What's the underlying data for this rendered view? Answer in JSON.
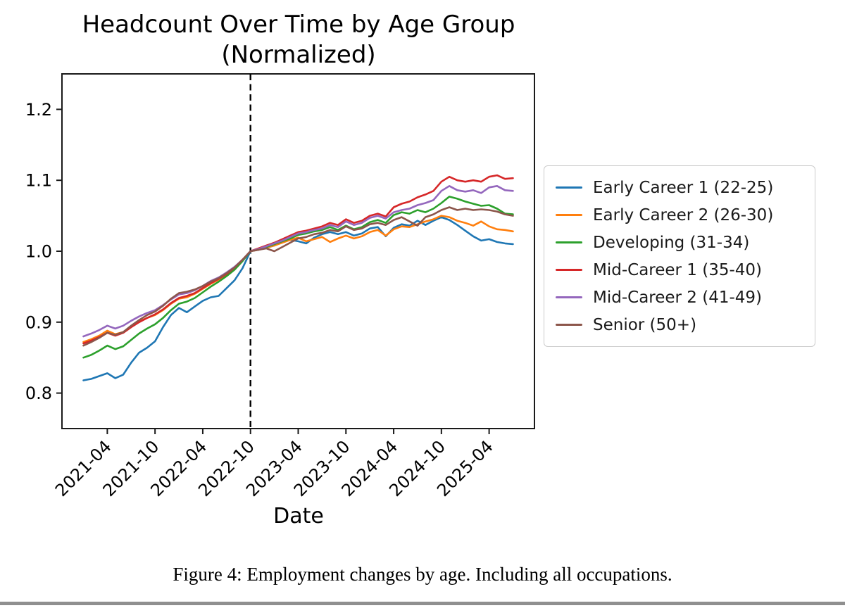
{
  "figure": {
    "title_line1": "Headcount Over Time by Age Group",
    "title_line2": "(Normalized)",
    "xlabel": "Date",
    "caption": "Figure 4: Employment changes by age. Including all occupations."
  },
  "chart_data": {
    "type": "line",
    "title": "Headcount Over Time by Age Group (Normalized)",
    "xlabel": "Date",
    "ylabel": "",
    "grid": false,
    "legend_position": "right-outside",
    "ylim": [
      0.75,
      1.25
    ],
    "yticks": [
      "1.2",
      "1.1",
      "1.0",
      "0.9",
      "0.8"
    ],
    "xticks": [
      "2021-04",
      "2021-10",
      "2022-04",
      "2022-10",
      "2023-04",
      "2023-10",
      "2024-04",
      "2024-10",
      "2025-04"
    ],
    "annotations": [
      {
        "type": "vline",
        "x": "2022-10",
        "style": "dashed",
        "color": "#000000",
        "note": "normalization point, all series = 1.0"
      }
    ],
    "x": [
      "2021-01",
      "2021-02",
      "2021-03",
      "2021-04",
      "2021-05",
      "2021-06",
      "2021-07",
      "2021-08",
      "2021-09",
      "2021-10",
      "2021-11",
      "2021-12",
      "2022-01",
      "2022-02",
      "2022-03",
      "2022-04",
      "2022-05",
      "2022-06",
      "2022-07",
      "2022-08",
      "2022-09",
      "2022-10",
      "2022-11",
      "2022-12",
      "2023-01",
      "2023-02",
      "2023-03",
      "2023-04",
      "2023-05",
      "2023-06",
      "2023-07",
      "2023-08",
      "2023-09",
      "2023-10",
      "2023-11",
      "2023-12",
      "2024-01",
      "2024-02",
      "2024-03",
      "2024-04",
      "2024-05",
      "2024-06",
      "2024-07",
      "2024-08",
      "2024-09",
      "2024-10",
      "2024-11",
      "2024-12",
      "2025-01",
      "2025-02",
      "2025-03",
      "2025-04",
      "2025-05",
      "2025-06",
      "2025-07"
    ],
    "series": [
      {
        "name": "Early Career 1 (22-25)",
        "color": "#1f77b4",
        "values": [
          0.818,
          0.82,
          0.824,
          0.828,
          0.821,
          0.826,
          0.843,
          0.857,
          0.864,
          0.873,
          0.893,
          0.91,
          0.92,
          0.914,
          0.922,
          0.93,
          0.935,
          0.937,
          0.948,
          0.959,
          0.976,
          1.0,
          1.002,
          1.005,
          1.008,
          1.013,
          1.016,
          1.014,
          1.011,
          1.019,
          1.024,
          1.027,
          1.024,
          1.027,
          1.022,
          1.025,
          1.032,
          1.034,
          1.021,
          1.033,
          1.038,
          1.036,
          1.043,
          1.037,
          1.043,
          1.048,
          1.044,
          1.037,
          1.029,
          1.021,
          1.015,
          1.017,
          1.013,
          1.011,
          1.01
        ]
      },
      {
        "name": "Early Career 2 (26-30)",
        "color": "#ff7f0e",
        "values": [
          0.872,
          0.876,
          0.881,
          0.888,
          0.883,
          0.886,
          0.894,
          0.901,
          0.906,
          0.91,
          0.917,
          0.926,
          0.933,
          0.935,
          0.94,
          0.947,
          0.954,
          0.96,
          0.967,
          0.976,
          0.987,
          1.0,
          1.002,
          1.005,
          1.008,
          1.012,
          1.016,
          1.019,
          1.014,
          1.017,
          1.02,
          1.013,
          1.018,
          1.022,
          1.018,
          1.021,
          1.027,
          1.03,
          1.022,
          1.031,
          1.035,
          1.034,
          1.038,
          1.042,
          1.045,
          1.05,
          1.048,
          1.043,
          1.04,
          1.036,
          1.042,
          1.035,
          1.031,
          1.03,
          1.028
        ]
      },
      {
        "name": "Developing (31-34)",
        "color": "#2ca02c",
        "values": [
          0.85,
          0.854,
          0.86,
          0.867,
          0.862,
          0.866,
          0.875,
          0.884,
          0.891,
          0.897,
          0.906,
          0.917,
          0.926,
          0.929,
          0.934,
          0.942,
          0.95,
          0.957,
          0.965,
          0.974,
          0.986,
          1.0,
          1.003,
          1.006,
          1.01,
          1.014,
          1.018,
          1.023,
          1.025,
          1.028,
          1.03,
          1.034,
          1.03,
          1.036,
          1.031,
          1.034,
          1.041,
          1.044,
          1.04,
          1.051,
          1.055,
          1.053,
          1.058,
          1.055,
          1.06,
          1.068,
          1.077,
          1.074,
          1.07,
          1.067,
          1.064,
          1.065,
          1.06,
          1.053,
          1.052
        ]
      },
      {
        "name": "Mid-Career 1 (35-40)",
        "color": "#d62728",
        "values": [
          0.87,
          0.874,
          0.879,
          0.885,
          0.881,
          0.885,
          0.893,
          0.9,
          0.906,
          0.911,
          0.918,
          0.927,
          0.934,
          0.937,
          0.941,
          0.948,
          0.955,
          0.961,
          0.968,
          0.977,
          0.988,
          1.0,
          1.004,
          1.008,
          1.012,
          1.017,
          1.022,
          1.027,
          1.029,
          1.032,
          1.035,
          1.04,
          1.037,
          1.045,
          1.04,
          1.043,
          1.05,
          1.053,
          1.049,
          1.062,
          1.067,
          1.07,
          1.076,
          1.08,
          1.085,
          1.098,
          1.105,
          1.1,
          1.098,
          1.1,
          1.098,
          1.105,
          1.107,
          1.102,
          1.103
        ]
      },
      {
        "name": "Mid-Career 2 (41-49)",
        "color": "#9467bd",
        "values": [
          0.88,
          0.884,
          0.889,
          0.895,
          0.891,
          0.895,
          0.902,
          0.908,
          0.913,
          0.917,
          0.924,
          0.932,
          0.939,
          0.941,
          0.945,
          0.951,
          0.958,
          0.963,
          0.97,
          0.978,
          0.988,
          1.0,
          1.003,
          1.007,
          1.011,
          1.015,
          1.02,
          1.025,
          1.027,
          1.03,
          1.032,
          1.037,
          1.034,
          1.042,
          1.037,
          1.04,
          1.047,
          1.05,
          1.046,
          1.055,
          1.058,
          1.06,
          1.065,
          1.068,
          1.072,
          1.085,
          1.092,
          1.086,
          1.084,
          1.086,
          1.082,
          1.09,
          1.092,
          1.086,
          1.085
        ]
      },
      {
        "name": "Senior (50+)",
        "color": "#8c564b",
        "values": [
          0.867,
          0.872,
          0.878,
          0.885,
          0.882,
          0.886,
          0.895,
          0.903,
          0.91,
          0.915,
          0.923,
          0.933,
          0.941,
          0.943,
          0.946,
          0.951,
          0.957,
          0.962,
          0.969,
          0.977,
          0.988,
          1.0,
          1.002,
          1.004,
          1.0,
          1.006,
          1.012,
          1.018,
          1.02,
          1.024,
          1.026,
          1.03,
          1.028,
          1.035,
          1.03,
          1.032,
          1.038,
          1.04,
          1.037,
          1.044,
          1.048,
          1.042,
          1.036,
          1.048,
          1.052,
          1.058,
          1.062,
          1.058,
          1.06,
          1.058,
          1.059,
          1.058,
          1.056,
          1.052,
          1.05
        ]
      }
    ]
  }
}
